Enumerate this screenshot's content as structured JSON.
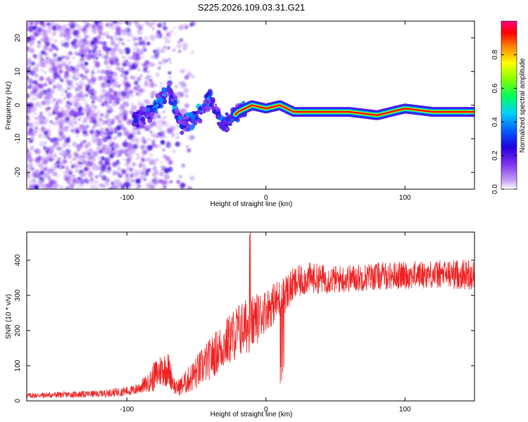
{
  "title": "S225.2026.109.03.31.G21",
  "chart_data": [
    {
      "type": "heatmap",
      "name": "spectrogram",
      "xlabel": "Height of straight line (km)",
      "ylabel": "Frequency (Hz)",
      "xlim": [
        -172,
        150
      ],
      "ylim": [
        -25,
        25
      ],
      "xticks": [
        -100,
        0,
        100
      ],
      "xtick_labels": [
        "-100",
        "0",
        "100"
      ],
      "yticks": [
        -20,
        -10,
        0,
        10,
        20
      ],
      "ytick_labels": [
        "-20",
        "-10",
        "0",
        "10",
        "20"
      ],
      "colorbar": {
        "label": "Normalized spectral amplitude",
        "range": [
          0.0,
          1.0
        ],
        "ticks": [
          0.0,
          0.2,
          0.4,
          0.6,
          0.8
        ],
        "tick_labels": [
          "0.0",
          "0.2",
          "0.4",
          "0.6",
          "0.8"
        ],
        "colormap": [
          "#ffffff",
          "#a050f0",
          "#3000e0",
          "#0060ff",
          "#00d0ff",
          "#00ff40",
          "#c0ff00",
          "#ffff00",
          "#ff8000",
          "#ff0000",
          "#ff0080"
        ]
      },
      "ridge": {
        "x": [
          -90,
          -80,
          -70,
          -60,
          -50,
          -40,
          -30,
          -20,
          -10,
          0,
          10,
          20,
          40,
          60,
          80,
          100,
          120,
          150
        ],
        "y": [
          -4,
          -1,
          5,
          -6,
          -3,
          2,
          -6,
          -2,
          0,
          -1,
          0,
          -2,
          -2,
          -2,
          -3,
          -1,
          -2,
          -2
        ],
        "intensity": [
          0.2,
          0.35,
          0.4,
          0.3,
          0.35,
          0.4,
          0.3,
          0.35,
          0.45,
          0.5,
          0.45,
          0.9,
          0.95,
          0.9,
          0.85,
          0.9,
          0.95,
          0.6
        ]
      }
    },
    {
      "type": "line",
      "name": "snr",
      "xlabel": "Height of straight line (km)",
      "ylabel": "SNR (10 * v/v)",
      "xlim": [
        -172,
        150
      ],
      "ylim": [
        0,
        480
      ],
      "xticks": [
        -100,
        0,
        100
      ],
      "xtick_labels": [
        "-100",
        "0",
        "100"
      ],
      "yticks": [
        0,
        100,
        200,
        300,
        400
      ],
      "ytick_labels": [
        "0",
        "100",
        "200",
        "300",
        "400"
      ],
      "color": "#ee2222",
      "trend": {
        "x": [
          -172,
          -120,
          -95,
          -85,
          -80,
          -75,
          -70,
          -65,
          -60,
          -50,
          -40,
          -30,
          -20,
          -10,
          0,
          10,
          20,
          30,
          50,
          80,
          120,
          150
        ],
        "y": [
          15,
          20,
          30,
          50,
          70,
          90,
          90,
          35,
          45,
          80,
          120,
          160,
          200,
          220,
          260,
          290,
          330,
          350,
          345,
          355,
          360,
          360
        ],
        "spread": [
          8,
          10,
          15,
          25,
          45,
          50,
          50,
          20,
          30,
          50,
          60,
          70,
          80,
          80,
          60,
          60,
          50,
          45,
          40,
          40,
          40,
          45
        ]
      }
    }
  ]
}
